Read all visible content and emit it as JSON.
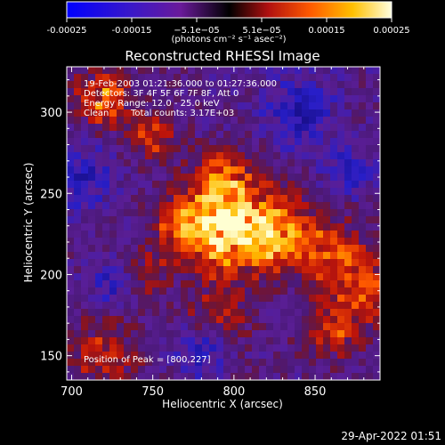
{
  "colorbar": {
    "ticks": [
      "-0.00025",
      "-0.00015",
      "−5.1e−05",
      "5.1e−05",
      "0.00015",
      "0.00025"
    ],
    "unit_label": "(photons cm⁻² s⁻¹ asec⁻²)",
    "min": -0.00025,
    "max": 0.00025
  },
  "chart_data": {
    "type": "heatmap",
    "title": "Reconstructed RHESSI Image",
    "xlabel": "Heliocentric X (arcsec)",
    "ylabel": "Heliocentric Y (arcsec)",
    "xlim": [
      697,
      890
    ],
    "ylim": [
      135,
      328
    ],
    "x_ticks": [
      700,
      750,
      800,
      850
    ],
    "y_ticks": [
      150,
      200,
      250,
      300
    ],
    "peak": [
      800,
      227
    ],
    "annotations": [
      "19-Feb-2003 01:21:36.000 to 01:27:36.000",
      "Detectors: 3F 4F 5F 6F 7F 8F, Att 0",
      "Energy Range: 12.0 - 25.0 keV",
      "Clean",
      "Total counts: 3.17E+03"
    ],
    "peak_label": "Position of Peak = [800,227]",
    "grid": false
  },
  "footer_timestamp": "29-Apr-2022 01:51"
}
